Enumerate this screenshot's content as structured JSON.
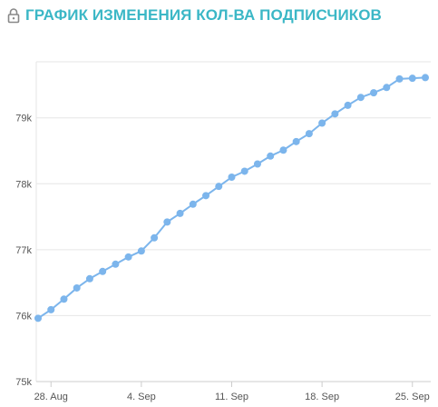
{
  "header": {
    "title": "ГРАФИК ИЗМЕНЕНИЯ КОЛ-ВА ПОДПИСЧИКОВ",
    "icon": "lock-icon",
    "color": "#3bb7c6"
  },
  "chart_data": {
    "type": "line",
    "title": "ГРАФИК ИЗМЕНЕНИЯ КОЛ-ВА ПОДПИСЧИКОВ",
    "xlabel": "",
    "ylabel": "",
    "x": [
      "27 Aug",
      "28 Aug",
      "29 Aug",
      "30 Aug",
      "31 Aug",
      "1 Sep",
      "2 Sep",
      "3 Sep",
      "4 Sep",
      "5 Sep",
      "6 Sep",
      "7 Sep",
      "8 Sep",
      "9 Sep",
      "10 Sep",
      "11 Sep",
      "12 Sep",
      "13 Sep",
      "14 Sep",
      "15 Sep",
      "16 Sep",
      "17 Sep",
      "18 Sep",
      "19 Sep",
      "20 Sep",
      "21 Sep",
      "22 Sep",
      "23 Sep",
      "24 Sep",
      "25 Sep",
      "26 Sep"
    ],
    "series": [
      {
        "color": "#7cb5ec",
        "values": [
          75960,
          76090,
          76250,
          76420,
          76560,
          76670,
          76780,
          76890,
          76980,
          77180,
          77420,
          77550,
          77690,
          77820,
          77960,
          78100,
          78190,
          78300,
          78420,
          78510,
          78640,
          78760,
          78920,
          79060,
          79190,
          79310,
          79380,
          79460,
          79590,
          79600,
          79610
        ]
      }
    ],
    "xticks": [
      "28. Aug",
      "4. Sep",
      "11. Sep",
      "18. Sep",
      "25. Sep"
    ],
    "yticks": [
      "75k",
      "76k",
      "77k",
      "78k",
      "79k"
    ],
    "ylim": [
      75000,
      79850
    ],
    "grid": true,
    "legend": "none"
  }
}
